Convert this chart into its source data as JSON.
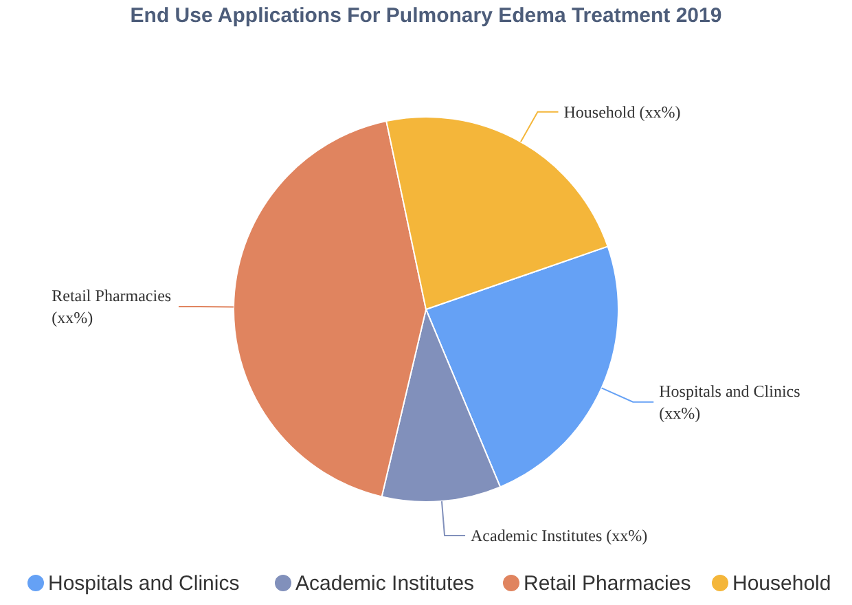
{
  "chart_data": {
    "type": "pie",
    "title": "End Use Applications For Pulmonary Edema Treatment 2019",
    "categories": [
      "Hospitals and Clinics",
      "Academic Institutes",
      "Retail Pharmacies",
      "Household"
    ],
    "values": [
      24,
      10,
      43,
      23
    ],
    "colors": [
      "#65a1f5",
      "#8190bb",
      "#e0845f",
      "#f4b63a"
    ],
    "annotations": [
      "Hospitals and Clinics (xx%)",
      "Academic Institutes (xx%)",
      "Retail Pharmacies (xx%)",
      "Household (xx%)"
    ],
    "legend": "bottom"
  }
}
